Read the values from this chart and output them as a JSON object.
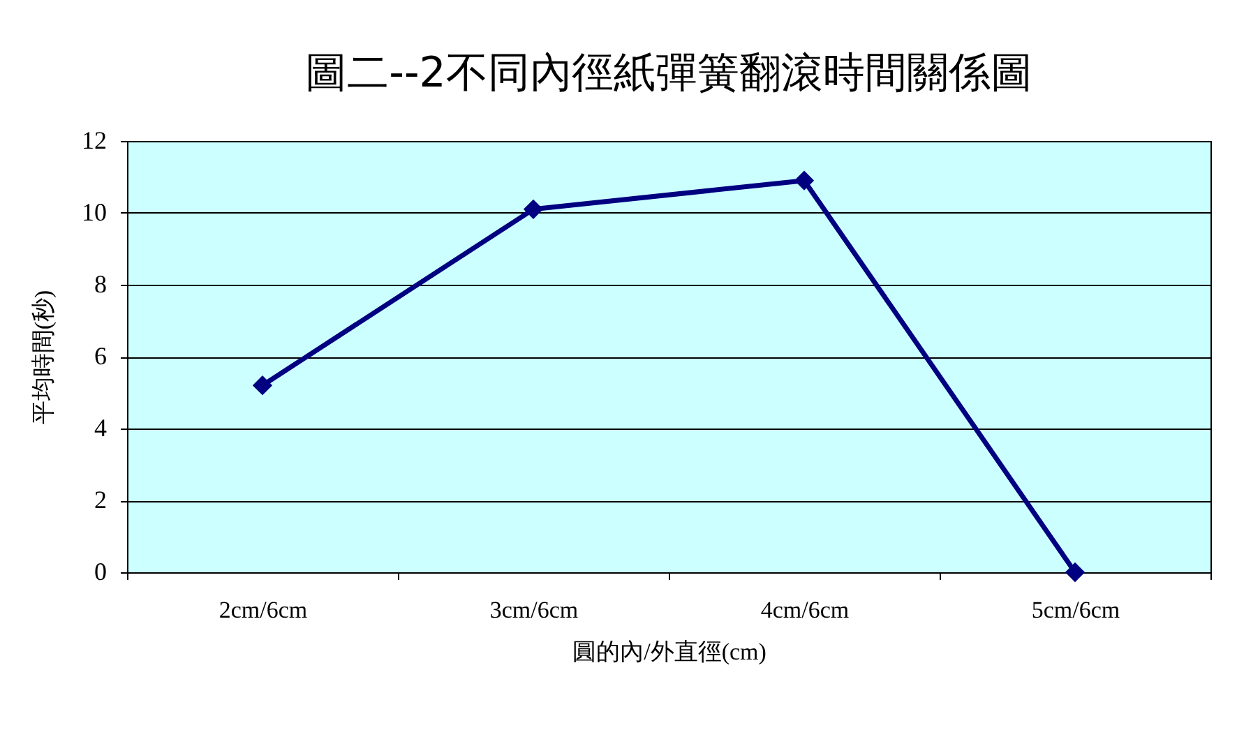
{
  "chart_data": {
    "type": "line",
    "title": "圖二--2不同內徑紙彈簧翻滾時間關係圖",
    "xlabel": "圓的內/外直徑(cm)",
    "ylabel": "平均時間(秒)",
    "categories": [
      "2cm/6cm",
      "3cm/6cm",
      "4cm/6cm",
      "5cm/6cm"
    ],
    "series": [
      {
        "color": "#000080",
        "values": [
          5.2,
          10.1,
          10.9,
          0
        ]
      }
    ],
    "ylim": [
      0,
      12
    ],
    "yticks": [
      0,
      2,
      4,
      6,
      8,
      10,
      12
    ],
    "grid": "y",
    "marker": "diamond",
    "line_style": "solid"
  }
}
